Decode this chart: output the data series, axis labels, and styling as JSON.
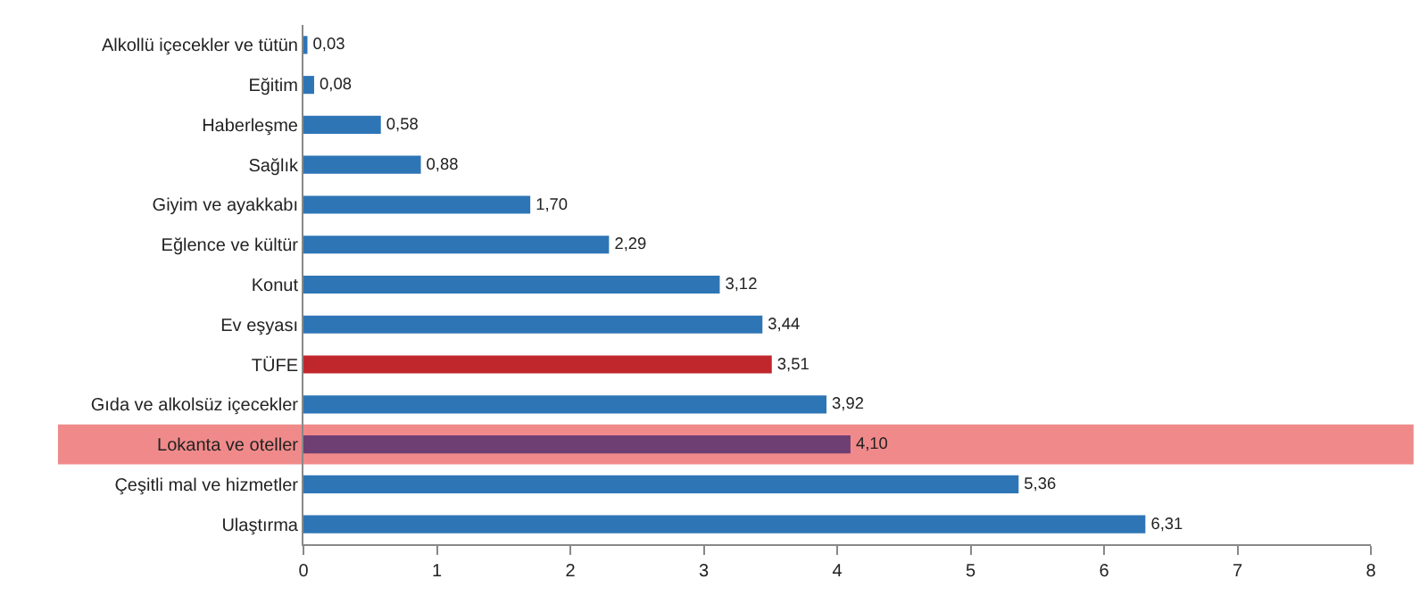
{
  "chart_data": {
    "type": "bar",
    "orientation": "horizontal",
    "categories": [
      "Alkollü içecekler ve tütün",
      "Eğitim",
      "Haberleşme",
      "Sağlık",
      "Giyim ve ayakkabı",
      "Eğlence ve kültür",
      "Konut",
      "Ev eşyası",
      "TÜFE",
      "Gıda ve alkolsüz içecekler",
      "Lokanta ve oteller",
      "Çeşitli mal ve hizmetler",
      "Ulaştırma"
    ],
    "values": [
      0.03,
      0.08,
      0.58,
      0.88,
      1.7,
      2.29,
      3.12,
      3.44,
      3.51,
      3.92,
      4.1,
      5.36,
      6.31
    ],
    "colors": [
      "#2e75b6",
      "#2e75b6",
      "#2e75b6",
      "#2e75b6",
      "#2e75b6",
      "#2e75b6",
      "#2e75b6",
      "#2e75b6",
      "#c0272d",
      "#2e75b6",
      "#6e3f73",
      "#2e75b6",
      "#2e75b6"
    ],
    "value_labels": [
      "0,03",
      "0,08",
      "0,58",
      "0,88",
      "1,70",
      "2,29",
      "3,12",
      "3,44",
      "3,51",
      "3,92",
      "4,10",
      "5,36",
      "6,31"
    ],
    "xlim": [
      0,
      8
    ],
    "xticks": [
      0,
      1,
      2,
      3,
      4,
      5,
      6,
      7,
      8
    ],
    "bands": [
      {
        "axis": "y",
        "from": "Lokanta ve oteller",
        "to": "Lokanta ve oteller",
        "color": "#f08a8a"
      }
    ]
  }
}
